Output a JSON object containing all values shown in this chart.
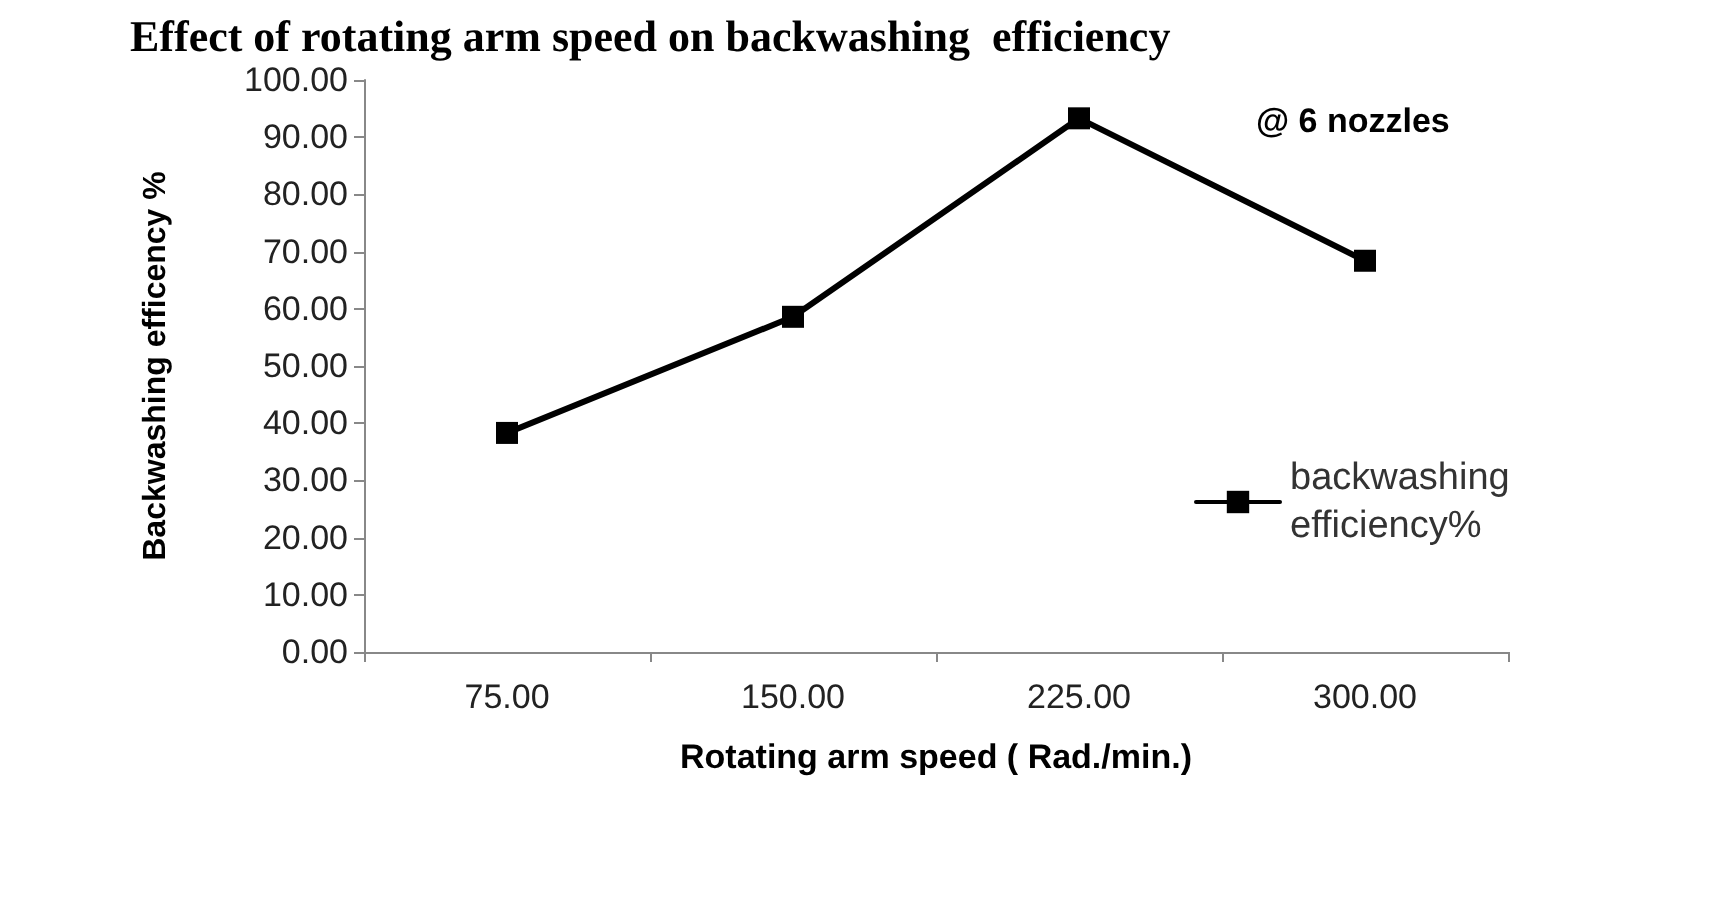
{
  "chart_data": {
    "type": "line",
    "title": "Effect of rotating arm speed on backwashing  efficiency",
    "xlabel": "Rotating arm speed ( Rad./min.)",
    "ylabel": "Backwashing efficency %",
    "annotations": [
      "@ 6 nozzles"
    ],
    "categories": [
      "75.00",
      "150.00",
      "225.00",
      "300.00"
    ],
    "series": [
      {
        "name": "backwashing efficiency%",
        "color": "#000000",
        "values": [
          38.3,
          58.6,
          93.3,
          68.4
        ]
      }
    ],
    "ylim": [
      0,
      100
    ],
    "yticks": [
      {
        "value": 0,
        "label": "0.00"
      },
      {
        "value": 10,
        "label": "10.00"
      },
      {
        "value": 20,
        "label": "20.00"
      },
      {
        "value": 30,
        "label": "30.00"
      },
      {
        "value": 40,
        "label": "40.00"
      },
      {
        "value": 50,
        "label": "50.00"
      },
      {
        "value": 60,
        "label": "60.00"
      },
      {
        "value": 70,
        "label": "70.00"
      },
      {
        "value": 80,
        "label": "80.00"
      },
      {
        "value": 90,
        "label": "90.00"
      },
      {
        "value": 100,
        "label": "100.00"
      }
    ],
    "grid": false,
    "legend": "right",
    "marker": "square",
    "line_style": "solid"
  }
}
